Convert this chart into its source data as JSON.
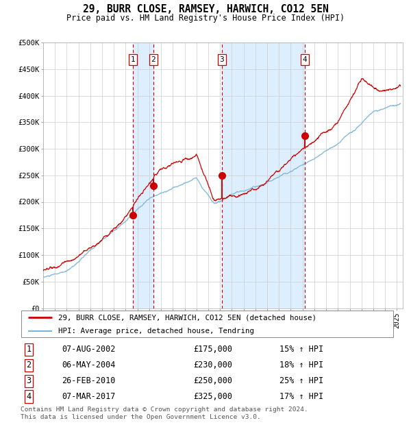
{
  "title": "29, BURR CLOSE, RAMSEY, HARWICH, CO12 5EN",
  "subtitle": "Price paid vs. HM Land Registry's House Price Index (HPI)",
  "ylabel_ticks": [
    "£0",
    "£50K",
    "£100K",
    "£150K",
    "£200K",
    "£250K",
    "£300K",
    "£350K",
    "£400K",
    "£450K",
    "£500K"
  ],
  "ytick_values": [
    0,
    50000,
    100000,
    150000,
    200000,
    250000,
    300000,
    350000,
    400000,
    450000,
    500000
  ],
  "xmin": 1995.0,
  "xmax": 2025.5,
  "ymin": 0,
  "ymax": 500000,
  "hpi_color": "#7ab4d8",
  "price_color": "#cc0000",
  "sale_marker_color": "#cc0000",
  "vline_color": "#cc0000",
  "shade_color": "#ddeeff",
  "sales": [
    {
      "date": 2002.6,
      "price": 175000,
      "label": "1",
      "date_str": "07-AUG-2002",
      "hpi_pct": "15%"
    },
    {
      "date": 2004.35,
      "price": 230000,
      "label": "2",
      "date_str": "06-MAY-2004",
      "hpi_pct": "18%"
    },
    {
      "date": 2010.15,
      "price": 250000,
      "label": "3",
      "date_str": "26-FEB-2010",
      "hpi_pct": "25%"
    },
    {
      "date": 2017.18,
      "price": 325000,
      "label": "4",
      "date_str": "07-MAR-2017",
      "hpi_pct": "17%"
    }
  ],
  "table_rows": [
    [
      "1",
      "07-AUG-2002",
      "£175,000",
      "15% ↑ HPI"
    ],
    [
      "2",
      "06-MAY-2004",
      "£230,000",
      "18% ↑ HPI"
    ],
    [
      "3",
      "26-FEB-2010",
      "£250,000",
      "25% ↑ HPI"
    ],
    [
      "4",
      "07-MAR-2017",
      "£325,000",
      "17% ↑ HPI"
    ]
  ],
  "footer": "Contains HM Land Registry data © Crown copyright and database right 2024.\nThis data is licensed under the Open Government Licence v3.0.",
  "legend_entries": [
    "29, BURR CLOSE, RAMSEY, HARWICH, CO12 5EN (detached house)",
    "HPI: Average price, detached house, Tendring"
  ]
}
